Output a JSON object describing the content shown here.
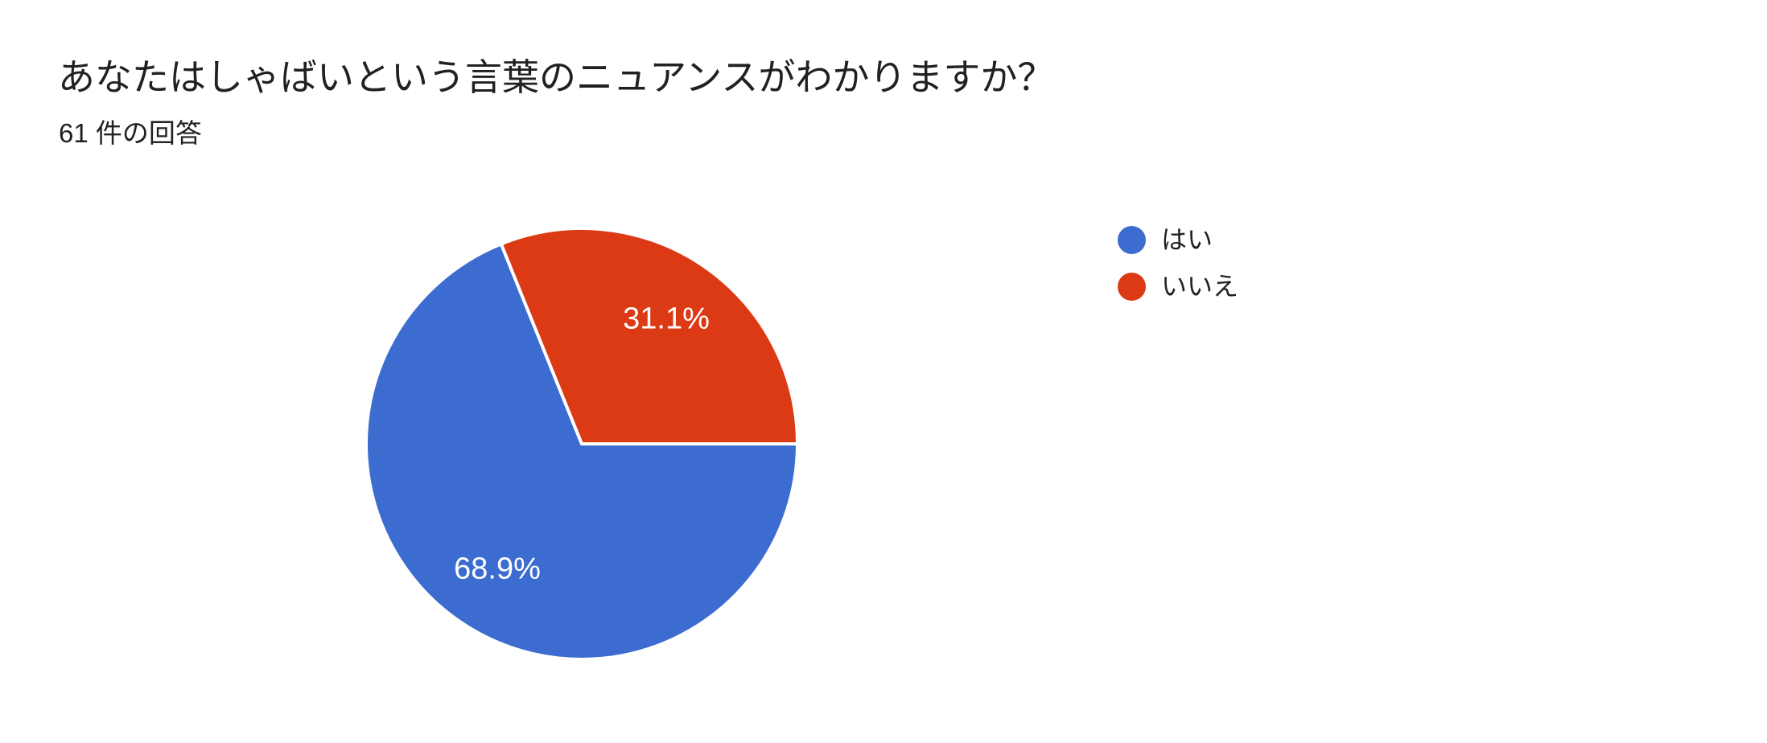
{
  "header": {
    "title": "あなたはしゃばいという言葉のニュアンスがわかりますか？",
    "response_count": "61 件の回答"
  },
  "chart_data": {
    "type": "pie",
    "title": "あなたはしゃばいという言葉のニュアンスがわかりますか？",
    "subtitle": "61 件の回答",
    "total_responses_text": "61 件の回答",
    "categories": [
      "はい",
      "いいえ"
    ],
    "values_percent": [
      68.9,
      31.1
    ],
    "slice_labels": [
      "68.9%",
      "31.1%"
    ],
    "slice_names": [
      "yes",
      "no"
    ],
    "colors": [
      "#3C6CD0",
      "#DC3A15"
    ],
    "label_color": "#FFFFFF",
    "border_color": "#FFFFFF",
    "legend_position": "right",
    "start_angle": "3-oclock-clockwise"
  },
  "legend": {
    "items": [
      {
        "label": "はい",
        "color": "#3C6CD0"
      },
      {
        "label": "いいえ",
        "color": "#DC3A15"
      }
    ]
  }
}
